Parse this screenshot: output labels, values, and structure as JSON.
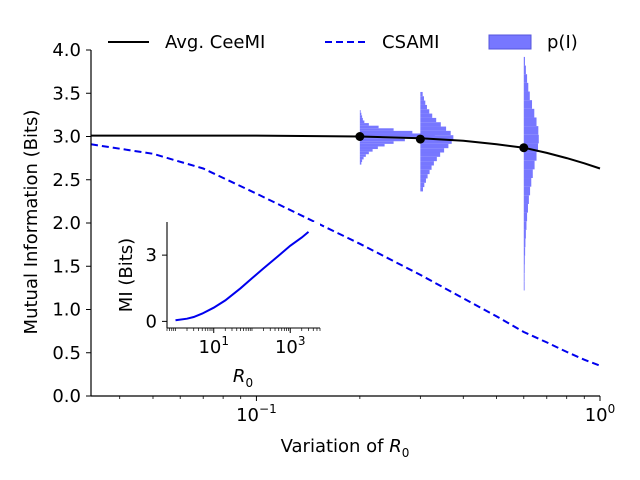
{
  "colors": {
    "ceemi": "#000000",
    "csami": "#0000ee",
    "hist_fill": "#7777ff",
    "hist_edge": "#5555dd",
    "axis": "#000000"
  },
  "chart_data": [
    {
      "type": "line",
      "xlabel": "Variation of R0",
      "xlabel_main": "Variation of ",
      "xlabel_symbol": "R",
      "xlabel_sub": "0",
      "ylabel": "Mutual Information (Bits)",
      "xscale": "log",
      "xlim": [
        0.033,
        1.0
      ],
      "ylim": [
        0.0,
        4.0
      ],
      "yticks": [
        {
          "value": 0.0,
          "label": "0.0"
        },
        {
          "value": 0.5,
          "label": "0.5"
        },
        {
          "value": 1.0,
          "label": "1.0"
        },
        {
          "value": 1.5,
          "label": "1.5"
        },
        {
          "value": 2.0,
          "label": "2.0"
        },
        {
          "value": 2.5,
          "label": "2.5"
        },
        {
          "value": 3.0,
          "label": "3.0"
        },
        {
          "value": 3.5,
          "label": "3.5"
        },
        {
          "value": 4.0,
          "label": "4.0"
        }
      ],
      "xticks": [
        {
          "value": 0.1,
          "base": "10",
          "exp": "−1"
        },
        {
          "value": 1.0,
          "base": "10",
          "exp": "0"
        }
      ],
      "legend": {
        "placement": "top",
        "entries": [
          {
            "label": "Avg. CeeMI",
            "style": "solid-line"
          },
          {
            "label": "CSAMI",
            "style": "dashed-line"
          },
          {
            "label": "p(I)",
            "style": "filled-patch"
          }
        ]
      },
      "series": [
        {
          "name": "Avg. CeeMI",
          "style": "solid",
          "x": [
            0.033,
            0.05,
            0.08,
            0.1,
            0.15,
            0.2,
            0.3,
            0.4,
            0.5,
            0.6,
            0.7,
            0.8,
            0.9,
            1.0
          ],
          "y": [
            3.01,
            3.01,
            3.01,
            3.01,
            3.005,
            3.0,
            2.98,
            2.95,
            2.91,
            2.87,
            2.81,
            2.75,
            2.69,
            2.63
          ]
        },
        {
          "name": "CSAMI",
          "style": "dashed",
          "x": [
            0.033,
            0.05,
            0.07,
            0.1,
            0.15,
            0.2,
            0.3,
            0.4,
            0.5,
            0.6,
            0.7,
            0.8,
            0.9,
            1.0
          ],
          "y": [
            2.91,
            2.8,
            2.63,
            2.34,
            2.0,
            1.76,
            1.4,
            1.13,
            0.92,
            0.74,
            0.62,
            0.51,
            0.42,
            0.35
          ]
        }
      ],
      "markers": [
        {
          "x": 0.2,
          "y": 3.0
        },
        {
          "x": 0.3,
          "y": 2.97
        },
        {
          "x": 0.6,
          "y": 2.87
        }
      ],
      "histograms": [
        {
          "name": "p(I)",
          "x": 0.2,
          "bins": [
            {
              "y": 2.69,
              "d": 0.02
            },
            {
              "y": 2.72,
              "d": 0.03
            },
            {
              "y": 2.75,
              "d": 0.05
            },
            {
              "y": 2.78,
              "d": 0.08
            },
            {
              "y": 2.81,
              "d": 0.12
            },
            {
              "y": 2.84,
              "d": 0.17
            },
            {
              "y": 2.87,
              "d": 0.24
            },
            {
              "y": 2.9,
              "d": 0.33
            },
            {
              "y": 2.93,
              "d": 0.45
            },
            {
              "y": 2.96,
              "d": 0.6
            },
            {
              "y": 2.99,
              "d": 0.9
            },
            {
              "y": 3.02,
              "d": 1.0
            },
            {
              "y": 3.05,
              "d": 0.7
            },
            {
              "y": 3.08,
              "d": 0.45
            },
            {
              "y": 3.11,
              "d": 0.25
            },
            {
              "y": 3.14,
              "d": 0.12
            },
            {
              "y": 3.17,
              "d": 0.06
            },
            {
              "y": 3.2,
              "d": 0.04
            },
            {
              "y": 3.23,
              "d": 0.03
            },
            {
              "y": 3.26,
              "d": 0.02
            },
            {
              "y": 3.29,
              "d": 0.01
            }
          ]
        },
        {
          "name": "p(I)",
          "x": 0.3,
          "bins": [
            {
              "y": 2.39,
              "d": 0.08
            },
            {
              "y": 2.44,
              "d": 0.12
            },
            {
              "y": 2.49,
              "d": 0.17
            },
            {
              "y": 2.54,
              "d": 0.22
            },
            {
              "y": 2.59,
              "d": 0.28
            },
            {
              "y": 2.64,
              "d": 0.34
            },
            {
              "y": 2.69,
              "d": 0.41
            },
            {
              "y": 2.74,
              "d": 0.5
            },
            {
              "y": 2.79,
              "d": 0.6
            },
            {
              "y": 2.84,
              "d": 0.72
            },
            {
              "y": 2.89,
              "d": 0.85
            },
            {
              "y": 2.94,
              "d": 0.95
            },
            {
              "y": 2.99,
              "d": 1.0
            },
            {
              "y": 3.04,
              "d": 0.92
            },
            {
              "y": 3.09,
              "d": 0.78
            },
            {
              "y": 3.14,
              "d": 0.62
            },
            {
              "y": 3.19,
              "d": 0.48
            },
            {
              "y": 3.24,
              "d": 0.36
            },
            {
              "y": 3.29,
              "d": 0.27
            },
            {
              "y": 3.34,
              "d": 0.2
            },
            {
              "y": 3.39,
              "d": 0.15
            },
            {
              "y": 3.44,
              "d": 0.11
            },
            {
              "y": 3.49,
              "d": 0.07
            }
          ]
        },
        {
          "name": "p(I)",
          "x": 0.6,
          "bins": [
            {
              "y": 1.27,
              "d": 0.04
            },
            {
              "y": 1.37,
              "d": 0.05
            },
            {
              "y": 1.47,
              "d": 0.06
            },
            {
              "y": 1.57,
              "d": 0.07
            },
            {
              "y": 1.67,
              "d": 0.09
            },
            {
              "y": 1.77,
              "d": 0.11
            },
            {
              "y": 1.87,
              "d": 0.14
            },
            {
              "y": 1.97,
              "d": 0.18
            },
            {
              "y": 2.07,
              "d": 0.22
            },
            {
              "y": 2.17,
              "d": 0.28
            },
            {
              "y": 2.27,
              "d": 0.34
            },
            {
              "y": 2.37,
              "d": 0.42
            },
            {
              "y": 2.47,
              "d": 0.5
            },
            {
              "y": 2.57,
              "d": 0.6
            },
            {
              "y": 2.67,
              "d": 0.72
            },
            {
              "y": 2.77,
              "d": 0.85
            },
            {
              "y": 2.87,
              "d": 0.95
            },
            {
              "y": 2.97,
              "d": 1.0
            },
            {
              "y": 3.07,
              "d": 0.97
            },
            {
              "y": 3.17,
              "d": 0.85
            },
            {
              "y": 3.27,
              "d": 0.7
            },
            {
              "y": 3.37,
              "d": 0.55
            },
            {
              "y": 3.47,
              "d": 0.4
            },
            {
              "y": 3.57,
              "d": 0.3
            },
            {
              "y": 3.67,
              "d": 0.22
            },
            {
              "y": 3.77,
              "d": 0.14
            },
            {
              "y": 3.87,
              "d": 0.08
            }
          ]
        }
      ]
    },
    {
      "type": "line",
      "xlabel": "R0",
      "xlabel_symbol": "R",
      "xlabel_sub": "0",
      "ylabel": "MI (Bits)",
      "xscale": "log",
      "xlim": [
        0.6,
        6000
      ],
      "ylim": [
        -0.3,
        4.5
      ],
      "xticks": [
        {
          "value": 10,
          "base": "10",
          "exp": "1"
        },
        {
          "value": 1000,
          "base": "10",
          "exp": "3"
        }
      ],
      "yticks": [
        {
          "value": 0,
          "label": "0"
        },
        {
          "value": 3,
          "label": "3"
        }
      ],
      "series": [
        {
          "style": "solid",
          "x": [
            1,
            2,
            3,
            5,
            10,
            20,
            50,
            100,
            200,
            500,
            1000,
            2000,
            3000
          ],
          "y": [
            0.05,
            0.12,
            0.2,
            0.35,
            0.62,
            0.95,
            1.5,
            1.95,
            2.4,
            2.98,
            3.42,
            3.8,
            4.05
          ]
        }
      ]
    }
  ]
}
